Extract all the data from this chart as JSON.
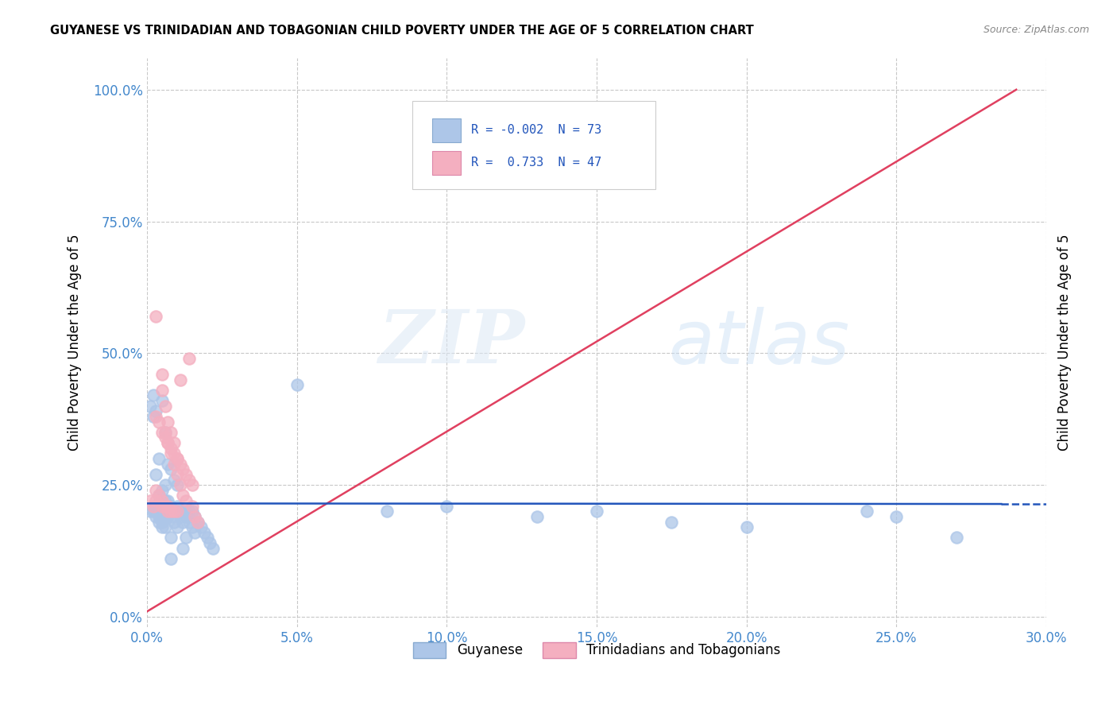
{
  "title": "GUYANESE VS TRINIDADIAN AND TOBAGONIAN CHILD POVERTY UNDER THE AGE OF 5 CORRELATION CHART",
  "source": "Source: ZipAtlas.com",
  "ylabel_label": "Child Poverty Under the Age of 5",
  "legend_labels": [
    "Guyanese",
    "Trinidadians and Tobagonians"
  ],
  "r_guyanese": "-0.002",
  "n_guyanese": "73",
  "r_trinidadian": "0.733",
  "n_trinidadian": "47",
  "color_guyanese": "#adc6e8",
  "color_trinidadian": "#f4afc0",
  "line_color_guyanese": "#2255bb",
  "line_color_trinidadian": "#e04060",
  "watermark_zip": "ZIP",
  "watermark_atlas": "atlas",
  "xlim": [
    0.0,
    0.3
  ],
  "ylim": [
    -0.02,
    1.06
  ],
  "xtick_positions": [
    0.0,
    0.05,
    0.1,
    0.15,
    0.2,
    0.25,
    0.3
  ],
  "ytick_positions": [
    0.0,
    0.25,
    0.5,
    0.75,
    1.0
  ],
  "guyanese_x": [
    0.001,
    0.002,
    0.002,
    0.003,
    0.003,
    0.003,
    0.003,
    0.004,
    0.004,
    0.004,
    0.004,
    0.005,
    0.005,
    0.005,
    0.005,
    0.006,
    0.006,
    0.006,
    0.006,
    0.006,
    0.007,
    0.007,
    0.007,
    0.007,
    0.008,
    0.008,
    0.008,
    0.008,
    0.008,
    0.009,
    0.009,
    0.009,
    0.01,
    0.01,
    0.01,
    0.01,
    0.011,
    0.011,
    0.012,
    0.012,
    0.012,
    0.013,
    0.013,
    0.013,
    0.014,
    0.014,
    0.015,
    0.015,
    0.016,
    0.016,
    0.017,
    0.018,
    0.019,
    0.02,
    0.021,
    0.022,
    0.008,
    0.05,
    0.08,
    0.1,
    0.13,
    0.15,
    0.175,
    0.2,
    0.24,
    0.25,
    0.27,
    0.001,
    0.002,
    0.003,
    0.004,
    0.005,
    0.006
  ],
  "guyanese_y": [
    0.4,
    0.38,
    0.42,
    0.39,
    0.27,
    0.21,
    0.19,
    0.3,
    0.23,
    0.2,
    0.18,
    0.41,
    0.24,
    0.2,
    0.17,
    0.35,
    0.25,
    0.22,
    0.2,
    0.19,
    0.29,
    0.22,
    0.2,
    0.19,
    0.28,
    0.21,
    0.2,
    0.19,
    0.15,
    0.26,
    0.2,
    0.18,
    0.25,
    0.21,
    0.2,
    0.17,
    0.2,
    0.19,
    0.2,
    0.18,
    0.13,
    0.2,
    0.19,
    0.15,
    0.2,
    0.18,
    0.2,
    0.17,
    0.19,
    0.16,
    0.18,
    0.17,
    0.16,
    0.15,
    0.14,
    0.13,
    0.11,
    0.44,
    0.2,
    0.21,
    0.19,
    0.2,
    0.18,
    0.17,
    0.2,
    0.19,
    0.15,
    0.2,
    0.2,
    0.2,
    0.19,
    0.18,
    0.17
  ],
  "trinidadian_x": [
    0.001,
    0.002,
    0.003,
    0.003,
    0.004,
    0.005,
    0.005,
    0.006,
    0.007,
    0.008,
    0.009,
    0.01,
    0.011,
    0.011,
    0.012,
    0.013,
    0.014,
    0.014,
    0.015,
    0.003,
    0.004,
    0.005,
    0.006,
    0.007,
    0.008,
    0.009,
    0.01,
    0.006,
    0.007,
    0.008,
    0.009,
    0.01,
    0.011,
    0.012,
    0.013,
    0.003,
    0.005,
    0.007,
    0.005,
    0.006,
    0.007,
    0.008,
    0.009,
    0.01,
    0.015,
    0.016,
    0.017
  ],
  "trinidadian_y": [
    0.22,
    0.21,
    0.57,
    0.38,
    0.37,
    0.35,
    0.46,
    0.34,
    0.33,
    0.32,
    0.31,
    0.3,
    0.29,
    0.45,
    0.28,
    0.27,
    0.26,
    0.49,
    0.25,
    0.24,
    0.23,
    0.22,
    0.21,
    0.21,
    0.2,
    0.2,
    0.2,
    0.35,
    0.33,
    0.31,
    0.29,
    0.27,
    0.25,
    0.23,
    0.22,
    0.22,
    0.21,
    0.2,
    0.43,
    0.4,
    0.37,
    0.35,
    0.33,
    0.3,
    0.21,
    0.19,
    0.18
  ],
  "trin_line_x0": 0.0,
  "trin_line_y0": 0.01,
  "trin_line_x1": 0.29,
  "trin_line_y1": 1.0,
  "guy_line_x0": 0.0,
  "guy_line_y0": 0.215,
  "guy_line_x1": 0.285,
  "guy_line_y1": 0.214
}
